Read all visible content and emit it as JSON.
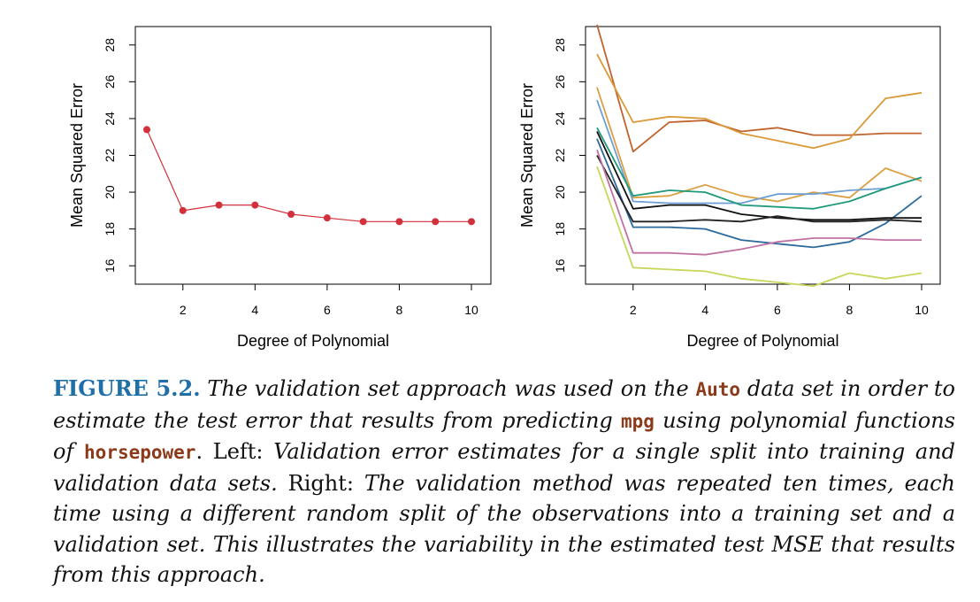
{
  "chart_data": [
    {
      "type": "line",
      "xlabel": "Degree of Polynomial",
      "ylabel": "Mean Squared Error",
      "xlim": [
        1,
        10
      ],
      "ylim": [
        15,
        29
      ],
      "x_ticks": [
        2,
        4,
        6,
        8,
        10
      ],
      "y_ticks": [
        16,
        18,
        20,
        22,
        24,
        26,
        28
      ],
      "markers": true,
      "grid": false,
      "series": [
        {
          "color": "#d2303b",
          "x": [
            1,
            2,
            3,
            4,
            5,
            6,
            7,
            8,
            9,
            10
          ],
          "values": [
            23.4,
            19.0,
            19.3,
            19.3,
            18.8,
            18.6,
            18.4,
            18.4,
            18.4,
            18.4
          ]
        }
      ]
    },
    {
      "type": "line",
      "xlabel": "Degree of Polynomial",
      "ylabel": "Mean Squared Error",
      "xlim": [
        1,
        10
      ],
      "ylim": [
        15,
        29
      ],
      "x_ticks": [
        2,
        4,
        6,
        8,
        10
      ],
      "y_ticks": [
        16,
        18,
        20,
        22,
        24,
        26,
        28
      ],
      "markers": false,
      "grid": false,
      "series": [
        {
          "color": "#c0632c",
          "x": [
            1,
            2,
            3,
            4,
            5,
            6,
            7,
            8,
            9,
            10
          ],
          "values": [
            29.1,
            22.2,
            23.8,
            23.9,
            23.3,
            23.5,
            23.1,
            23.1,
            23.2,
            23.2
          ]
        },
        {
          "color": "#d99a3a",
          "x": [
            1,
            2,
            3,
            4,
            5,
            6,
            7,
            8,
            9,
            10
          ],
          "values": [
            27.5,
            23.8,
            24.1,
            24.0,
            23.2,
            22.8,
            22.4,
            22.9,
            25.1,
            25.4
          ]
        },
        {
          "color": "#dba043",
          "x": [
            1,
            2,
            3,
            4,
            5,
            6,
            7,
            8,
            9,
            10
          ],
          "values": [
            25.7,
            19.7,
            19.8,
            20.4,
            19.8,
            19.5,
            20.0,
            19.7,
            21.3,
            20.6
          ]
        },
        {
          "color": "#6e9ed4",
          "x": [
            1,
            2,
            3,
            4,
            5,
            6,
            7,
            8,
            9,
            10
          ],
          "values": [
            25.0,
            19.5,
            19.4,
            19.4,
            19.4,
            19.9,
            19.9,
            20.1,
            20.2,
            20.8
          ]
        },
        {
          "color": "#1f9a7a",
          "x": [
            1,
            2,
            3,
            4,
            5,
            6,
            7,
            8,
            9,
            10
          ],
          "values": [
            23.5,
            19.8,
            20.1,
            20.0,
            19.3,
            19.2,
            19.1,
            19.5,
            20.2,
            20.8
          ]
        },
        {
          "color": "#2c6a9c",
          "x": [
            1,
            2,
            3,
            4,
            5,
            6,
            7,
            8,
            9,
            10
          ],
          "values": [
            22.9,
            18.1,
            18.1,
            18.0,
            17.4,
            17.2,
            17.0,
            17.3,
            18.3,
            19.8
          ]
        },
        {
          "color": "#111111",
          "x": [
            1,
            2,
            3,
            4,
            5,
            6,
            7,
            8,
            9,
            10
          ],
          "values": [
            23.3,
            19.1,
            19.3,
            19.3,
            18.8,
            18.6,
            18.5,
            18.5,
            18.6,
            18.6
          ]
        },
        {
          "color": "#222222",
          "x": [
            1,
            2,
            3,
            4,
            5,
            6,
            7,
            8,
            9,
            10
          ],
          "values": [
            22.0,
            18.4,
            18.4,
            18.5,
            18.4,
            18.7,
            18.4,
            18.4,
            18.5,
            18.4
          ]
        },
        {
          "color": "#c072a2",
          "x": [
            1,
            2,
            3,
            4,
            5,
            6,
            7,
            8,
            9,
            10
          ],
          "values": [
            22.3,
            16.7,
            16.7,
            16.6,
            16.9,
            17.3,
            17.5,
            17.5,
            17.4,
            17.4
          ]
        },
        {
          "color": "#c8d65a",
          "x": [
            1,
            2,
            3,
            4,
            5,
            6,
            7,
            8,
            9,
            10
          ],
          "values": [
            21.4,
            15.9,
            15.8,
            15.7,
            15.3,
            15.1,
            14.9,
            15.6,
            15.3,
            15.6
          ]
        }
      ]
    }
  ],
  "caption": {
    "label": "FIGURE 5.2.",
    "t1": " The validation set approach was used on the ",
    "code1": "Auto",
    "t2": " data set in order to estimate the test error that results from predicting ",
    "code2": "mpg",
    "t3": " using polynomial functions of ",
    "code3": "horsepower",
    "t4": ". ",
    "left_word": "Left:",
    "t5": " Validation error estimates for a single split into training and validation data sets. ",
    "right_word": "Right:",
    "t6": " The validation method was repeated ten times, each time using a different random split of the observations into a training set and a validation set. This illustrates the variability in the estimated test MSE that results from this approach."
  }
}
